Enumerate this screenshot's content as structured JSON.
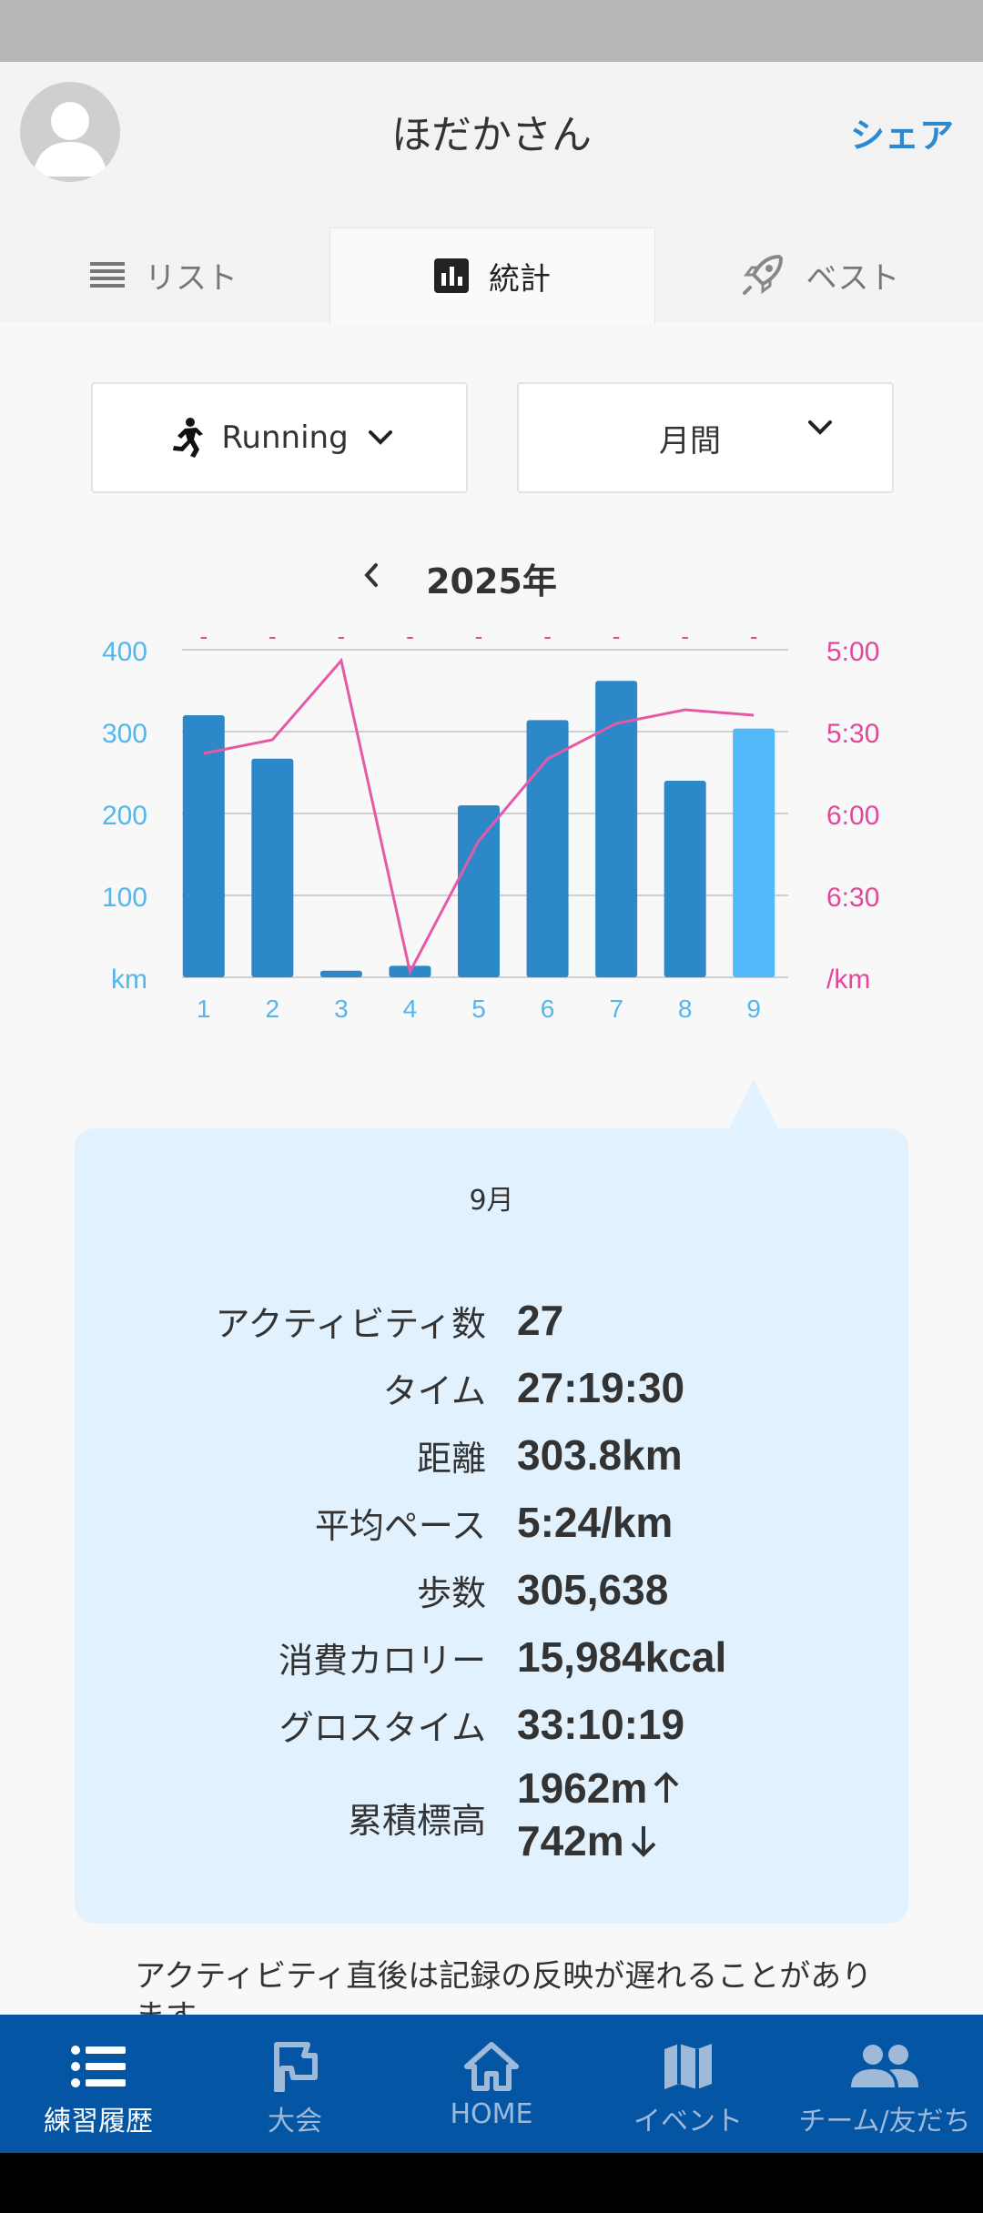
{
  "header": {
    "title": "ほだかさん",
    "share_label": "シェア"
  },
  "tabs": [
    {
      "label": "リスト",
      "icon": "list-icon"
    },
    {
      "label": "統計",
      "icon": "bar-chart-icon",
      "active": true
    },
    {
      "label": "ベスト",
      "icon": "rocket-icon"
    }
  ],
  "filters": {
    "sport": "Running",
    "period": "月間"
  },
  "year_label": "2025年",
  "chart_data": {
    "type": "bar",
    "categories": [
      "1",
      "2",
      "3",
      "4",
      "5",
      "6",
      "7",
      "8",
      "9"
    ],
    "series": [
      {
        "values": [
          320,
          267,
          8,
          14,
          210,
          314,
          362,
          240,
          303.8
        ],
        "axis": "left"
      },
      {
        "values": [
          "5:38",
          "5:33",
          "5:04",
          "6:58",
          "6:10",
          "5:40",
          "5:27",
          "5:22",
          "5:24"
        ],
        "axis": "right",
        "type": "line"
      }
    ],
    "left_axis": {
      "label": "km",
      "ticks": [
        "400",
        "300",
        "200",
        "100"
      ],
      "ylim": [
        0,
        400
      ]
    },
    "right_axis": {
      "label": "/km",
      "ticks": [
        "5:00",
        "5:30",
        "6:00",
        "6:30"
      ],
      "ylim": [
        "5:00",
        "7:00"
      ]
    },
    "selected_index": 8,
    "colors": {
      "bar": "#2c88c8",
      "selected_bar": "#52b8f8",
      "pace_line": "#e45aa8",
      "left_axis": "#55b6ea",
      "right_axis": "#e2479d"
    }
  },
  "summary": {
    "month": "9月",
    "rows": [
      {
        "label": "アクティビティ数",
        "value": "27"
      },
      {
        "label": "タイム",
        "value": "27:19:30"
      },
      {
        "label": "距離",
        "value": "303.8km"
      },
      {
        "label": "平均ペース",
        "value": "5:24/km"
      },
      {
        "label": "歩数",
        "value": "305,638"
      },
      {
        "label": "消費カロリー",
        "value": "15,984kcal"
      },
      {
        "label": "グロスタイム",
        "value": "33:10:19"
      }
    ],
    "elevation": {
      "label": "累積標高",
      "up": "1962m",
      "down": "742m"
    }
  },
  "note": "アクティビティ直後は記録の反映が遅れることがあります。",
  "nav": [
    {
      "label": "練習履歴",
      "icon": "list-icon",
      "active": true
    },
    {
      "label": "大会",
      "icon": "flag-icon"
    },
    {
      "label": "HOME",
      "icon": "home-icon"
    },
    {
      "label": "イベント",
      "icon": "map-icon"
    },
    {
      "label": "チーム/友だち",
      "icon": "people-icon"
    }
  ]
}
